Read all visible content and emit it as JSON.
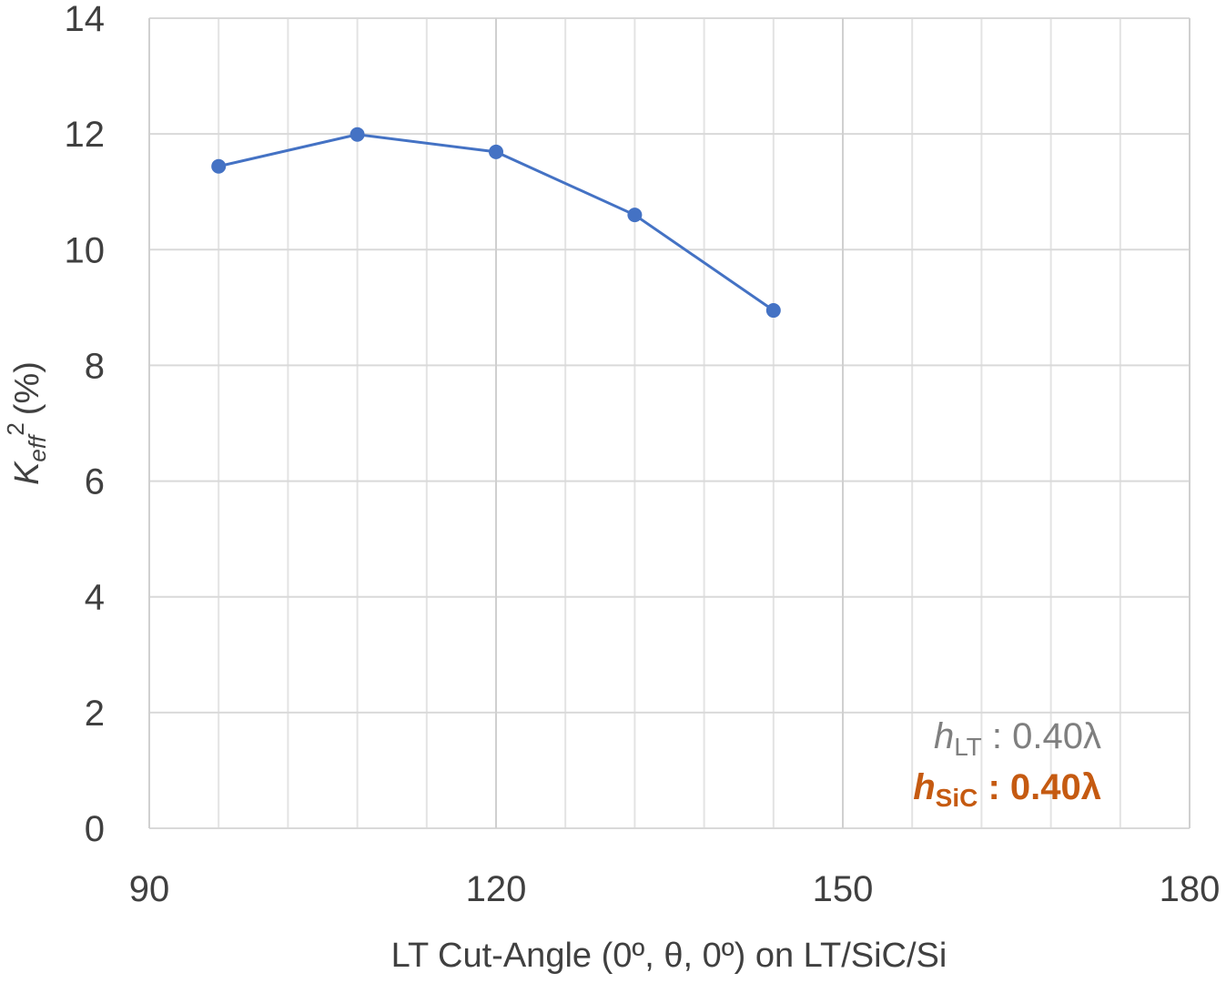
{
  "chart_data": {
    "type": "line",
    "x_label": "LT Cut-Angle (0º, θ, 0º) on LT/SiC/Si",
    "y_label": {
      "symbol": "K",
      "subscript": "eff",
      "superscript": "2",
      "unit": "(%)"
    },
    "x": [
      96,
      108,
      120,
      132,
      144
    ],
    "series": [
      {
        "color": "#4472c4",
        "values": [
          11.44,
          11.99,
          11.69,
          10.6,
          8.95
        ]
      }
    ],
    "xlim": [
      90,
      180
    ],
    "xticks": [
      90,
      120,
      150,
      180
    ],
    "xminorticks": [
      96,
      102,
      108,
      114,
      126,
      132,
      138,
      144,
      156,
      162,
      168,
      174
    ],
    "ylim": [
      0,
      14
    ],
    "yticks": [
      0,
      2,
      4,
      6,
      8,
      10,
      12,
      14
    ],
    "grid": true,
    "annotations": [
      {
        "symbol": "h",
        "subscript": "LT",
        "text": " : 0.40λ",
        "color": "#7f7f7f"
      },
      {
        "symbol": "h",
        "subscript": "SiC",
        "text": " : 0.40λ",
        "color": "#c55a11"
      }
    ]
  }
}
